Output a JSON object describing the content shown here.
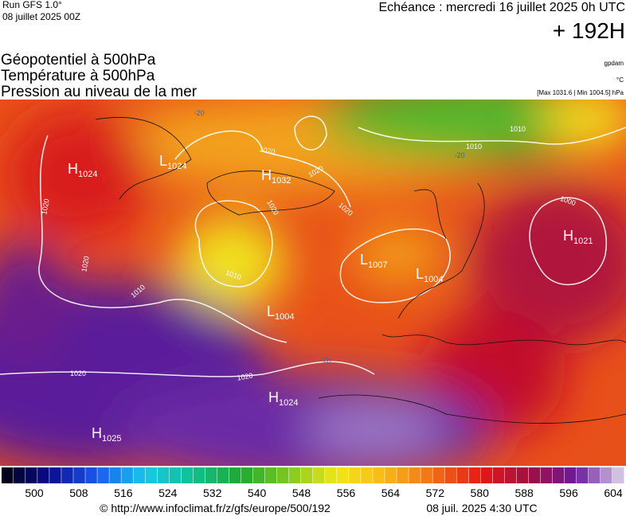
{
  "header": {
    "run": "Run GFS 1.0°",
    "run_date": "08 juillet 2025 00Z",
    "forecast": "Echéance : mercredi 16 juillet 2025 0h UTC",
    "lead": "+ 192H"
  },
  "fields": [
    "Géopotentiel à 500hPa",
    "Température à 500hPa",
    "Pression au niveau de la mer"
  ],
  "units": [
    "gpdam",
    "°C",
    "[Max 1031.6 | Min 1004.5] hPa"
  ],
  "centers": [
    {
      "letter": "H",
      "value": "1024"
    },
    {
      "letter": "L",
      "value": "1024"
    },
    {
      "letter": "H",
      "value": "1032"
    },
    {
      "letter": "L",
      "value": "1007"
    },
    {
      "letter": "L",
      "value": "1004"
    },
    {
      "letter": "L",
      "value": "1004"
    },
    {
      "letter": "H",
      "value": "1021"
    },
    {
      "letter": "H",
      "value": "1024"
    },
    {
      "letter": "H",
      "value": "1025"
    }
  ],
  "isobar_labels": [
    "1020",
    "1020",
    "1020",
    "1020",
    "1020",
    "1000",
    "1010",
    "1010",
    "1010",
    "1010",
    "1020",
    "1020",
    "1020",
    "-20",
    "-20",
    "-20"
  ],
  "colorbar": {
    "labels": [
      500,
      508,
      516,
      524,
      532,
      540,
      548,
      556,
      564,
      572,
      580,
      588,
      596,
      604
    ]
  },
  "footer": {
    "source": "© http://www.infoclimat.fr/z/gfs/europe/500/192",
    "time": "08 juil. 2025  4:30 UTC"
  }
}
